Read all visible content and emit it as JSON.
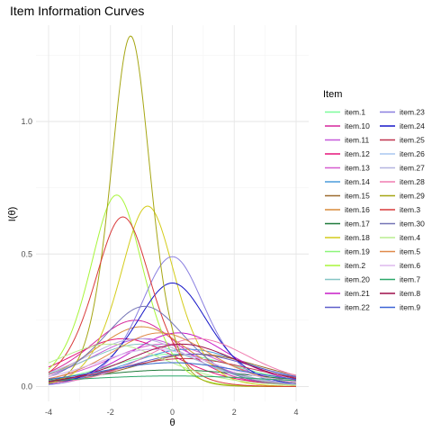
{
  "chart_data": {
    "type": "line",
    "title": "Item Information Curves",
    "xlabel": "θ",
    "ylabel": "I(θ)",
    "xlim": [
      -4,
      4
    ],
    "ylim": [
      0,
      1.32
    ],
    "xticks": [
      -4,
      -2,
      0,
      2,
      4
    ],
    "yticks": [
      0.0,
      0.5,
      1.0
    ],
    "ytick_labels": [
      "0.0",
      "0.5",
      "1.0"
    ],
    "grid": true,
    "legend_title": "Item",
    "legend_position": "right",
    "series": [
      {
        "name": "item.1",
        "color": "#7CFC9A",
        "a": 0.7,
        "b": 0.0,
        "c": 0.0
      },
      {
        "name": "item.10",
        "color": "#D6279C",
        "a": 1.0,
        "b": -1.2,
        "c": 0.0
      },
      {
        "name": "item.11",
        "color": "#C659D9",
        "a": 0.85,
        "b": -0.9,
        "c": 0.0
      },
      {
        "name": "item.12",
        "color": "#E5157A",
        "a": 0.85,
        "b": -1.6,
        "c": 0.0
      },
      {
        "name": "item.13",
        "color": "#D65BD0",
        "a": 0.8,
        "b": -0.3,
        "c": 0.0
      },
      {
        "name": "item.14",
        "color": "#4A9BDB",
        "a": 0.75,
        "b": 0.5,
        "c": 0.0
      },
      {
        "name": "item.15",
        "color": "#9C6A2E",
        "a": 0.7,
        "b": 0.8,
        "c": 0.0
      },
      {
        "name": "item.16",
        "color": "#D98B3A",
        "a": 0.95,
        "b": -1.0,
        "c": 0.0
      },
      {
        "name": "item.17",
        "color": "#1F7A3A",
        "a": 0.5,
        "b": 0.0,
        "c": 0.0
      },
      {
        "name": "item.18",
        "color": "#D4CC1A",
        "a": 1.65,
        "b": -0.8,
        "c": 0.0
      },
      {
        "name": "item.19",
        "color": "#8CF57A",
        "a": 0.6,
        "b": 0.0,
        "c": 0.0
      },
      {
        "name": "item.2",
        "color": "#A8F53A",
        "a": 1.7,
        "b": -1.8,
        "c": 0.0
      },
      {
        "name": "item.20",
        "color": "#86C5C5",
        "a": 0.8,
        "b": -1.0,
        "c": 0.0
      },
      {
        "name": "item.21",
        "color": "#C71CC7",
        "a": 0.9,
        "b": 0.2,
        "c": 0.0
      },
      {
        "name": "item.22",
        "color": "#5E5EC9",
        "a": 0.7,
        "b": 0.6,
        "c": 0.0
      },
      {
        "name": "item.23",
        "color": "#8A7FE0",
        "a": 1.4,
        "b": 0.0,
        "c": 0.0
      },
      {
        "name": "item.24",
        "color": "#1616C8",
        "a": 1.25,
        "b": 0.0,
        "c": 0.0
      },
      {
        "name": "item.25",
        "color": "#C0334F",
        "a": 0.65,
        "b": 0.4,
        "c": 0.0
      },
      {
        "name": "item.26",
        "color": "#A9C7F0",
        "a": 0.75,
        "b": -0.6,
        "c": 0.0
      },
      {
        "name": "item.27",
        "color": "#B5B5E0",
        "a": 0.85,
        "b": -1.1,
        "c": 0.0
      },
      {
        "name": "item.28",
        "color": "#F07DB0",
        "a": 0.85,
        "b": 0.8,
        "c": 0.0
      },
      {
        "name": "item.29",
        "color": "#A6A613",
        "a": 2.3,
        "b": -1.35,
        "c": 0.0
      },
      {
        "name": "item.3",
        "color": "#D93A3A",
        "a": 1.6,
        "b": -1.6,
        "c": 0.0
      },
      {
        "name": "item.30",
        "color": "#7373B5",
        "a": 1.1,
        "b": -0.9,
        "c": 0.0
      },
      {
        "name": "item.4",
        "color": "#B9EE8F",
        "a": 0.8,
        "b": -2.0,
        "c": 0.0
      },
      {
        "name": "item.5",
        "color": "#E0894A",
        "a": 0.9,
        "b": -0.4,
        "c": 0.0
      },
      {
        "name": "item.6",
        "color": "#DEB8EE",
        "a": 0.75,
        "b": -0.6,
        "c": 0.0
      },
      {
        "name": "item.7",
        "color": "#2CA86A",
        "a": 0.4,
        "b": 0.0,
        "c": 0.0
      },
      {
        "name": "item.8",
        "color": "#9E0F4A",
        "a": 0.8,
        "b": 0.3,
        "c": 0.0
      },
      {
        "name": "item.9",
        "color": "#3C63D6",
        "a": 0.6,
        "b": 0.0,
        "c": 0.0
      }
    ]
  }
}
